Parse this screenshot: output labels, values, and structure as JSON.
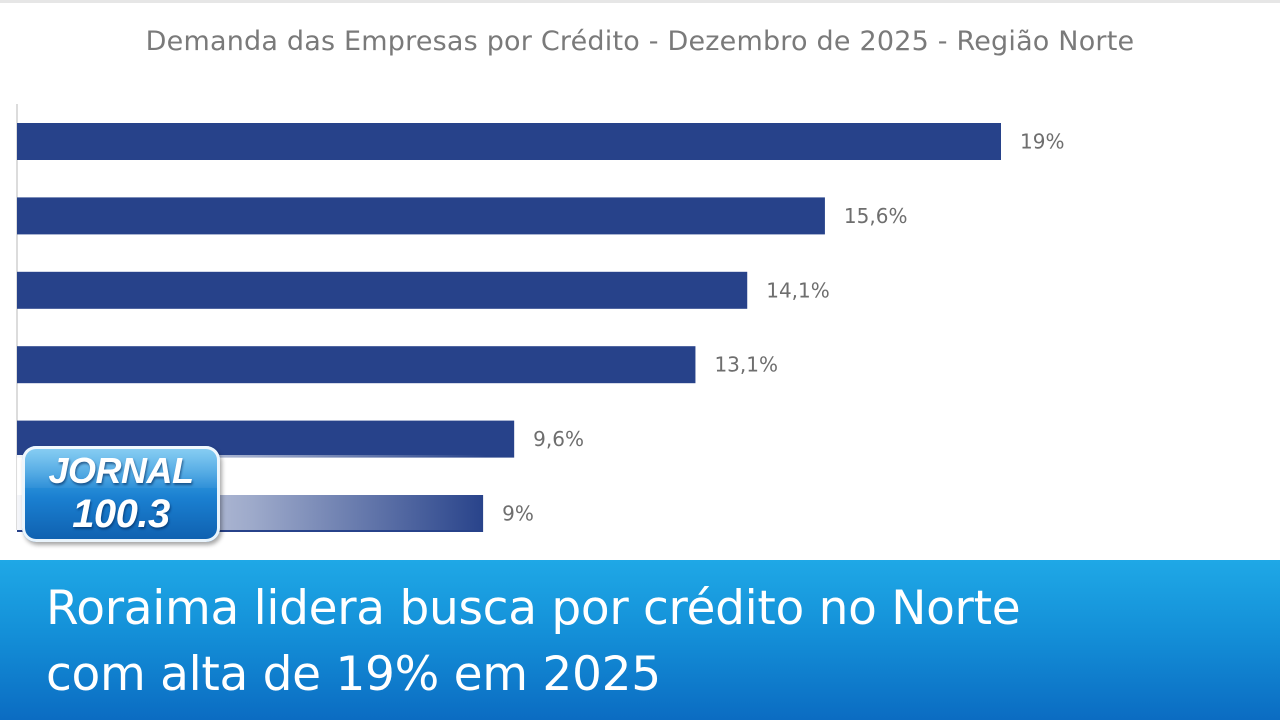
{
  "chart_data": {
    "type": "bar",
    "orientation": "horizontal",
    "title": "Demanda das Empresas por Crédito - Dezembro de 2025 - Região Norte",
    "values": [
      19,
      15.6,
      14.1,
      13.1,
      9.6,
      9
    ],
    "value_labels": [
      "19%",
      "15,6%",
      "14,1%",
      "13,1%",
      "9,6%",
      "9%"
    ],
    "unit": "%",
    "xlim": [
      0,
      19
    ],
    "bar_color": "#27428a",
    "label_color": "#6e6e6e",
    "grid": false,
    "legend": "none"
  },
  "logo": {
    "line1": "JORNAL",
    "line2": "100.3"
  },
  "headline": {
    "line1": "Roraima lidera busca por crédito no Norte",
    "line2": "com alta de 19% em 2025"
  },
  "colors": {
    "banner": "#1490d8",
    "bar": "#27428a"
  }
}
